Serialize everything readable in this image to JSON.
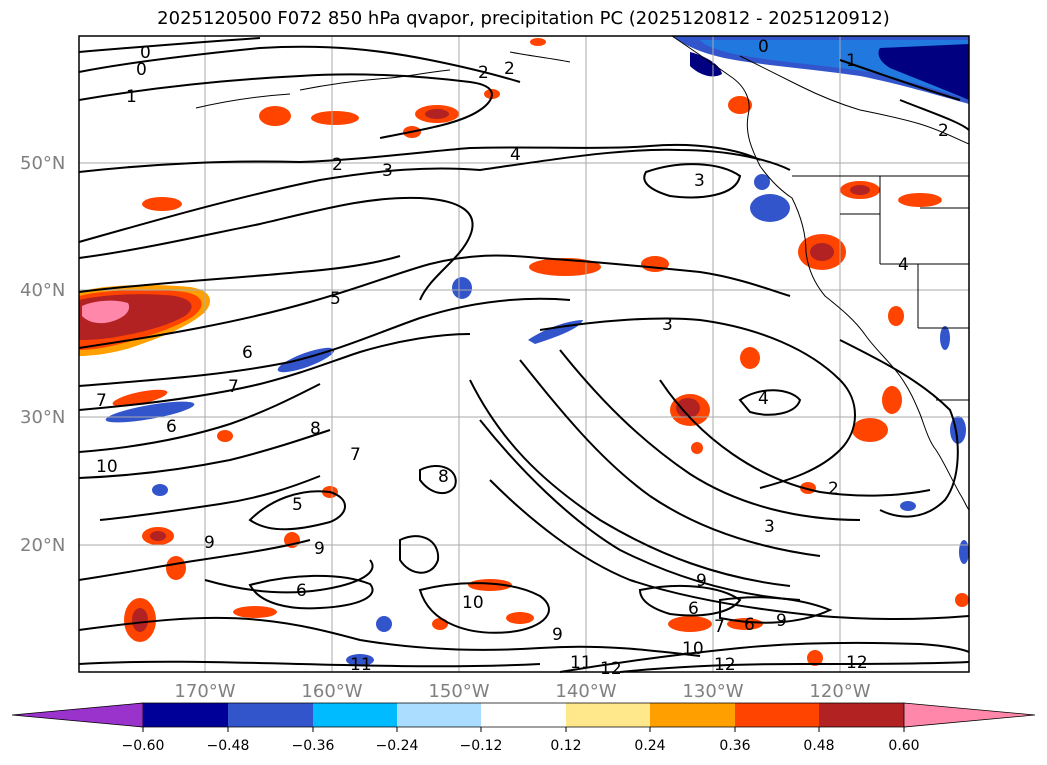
{
  "title": "2025120500 F072 850 hPa qvapor, precipitation PC (2025120812 - 2025120912)",
  "map": {
    "lat_labels": [
      "50°N",
      "40°N",
      "30°N",
      "20°N"
    ],
    "lon_labels": [
      "170°W",
      "160°W",
      "150°W",
      "140°W",
      "130°W",
      "120°W"
    ],
    "contour_labels": [
      "0",
      "0",
      "0",
      "1",
      "1",
      "2",
      "2",
      "2",
      "2",
      "2",
      "3",
      "3",
      "3",
      "3",
      "4",
      "4",
      "4",
      "5",
      "5",
      "6",
      "6",
      "6",
      "7",
      "7",
      "7",
      "8",
      "8",
      "9",
      "9",
      "9",
      "9",
      "10",
      "10",
      "10",
      "11",
      "11",
      "12",
      "12",
      "12",
      "6",
      "7",
      "6",
      "9"
    ]
  },
  "colorbar": {
    "ticks": [
      "−0.60",
      "−0.48",
      "−0.36",
      "−0.24",
      "−0.12",
      "0.12",
      "0.24",
      "0.36",
      "0.48",
      "0.60"
    ],
    "colors": [
      "#9933cc",
      "#000099",
      "#3355cc",
      "#00bbff",
      "#aaddff",
      "#ffffff",
      "#ffe88c",
      "#ffa000",
      "#ff4400",
      "#b22222",
      "#ff88aa"
    ]
  },
  "colors": {
    "precip_neg_dark": "#000080",
    "precip_neg_mid": "#3355cc",
    "precip_neg_light": "#00bbff",
    "precip_pos_light": "#ffe88c",
    "precip_pos_orange": "#ffa000",
    "precip_pos_red": "#ff4400",
    "precip_pos_dark": "#b22222",
    "precip_pos_pink": "#ff88aa",
    "grid": "#aaaaaa",
    "contour": "#000000"
  }
}
